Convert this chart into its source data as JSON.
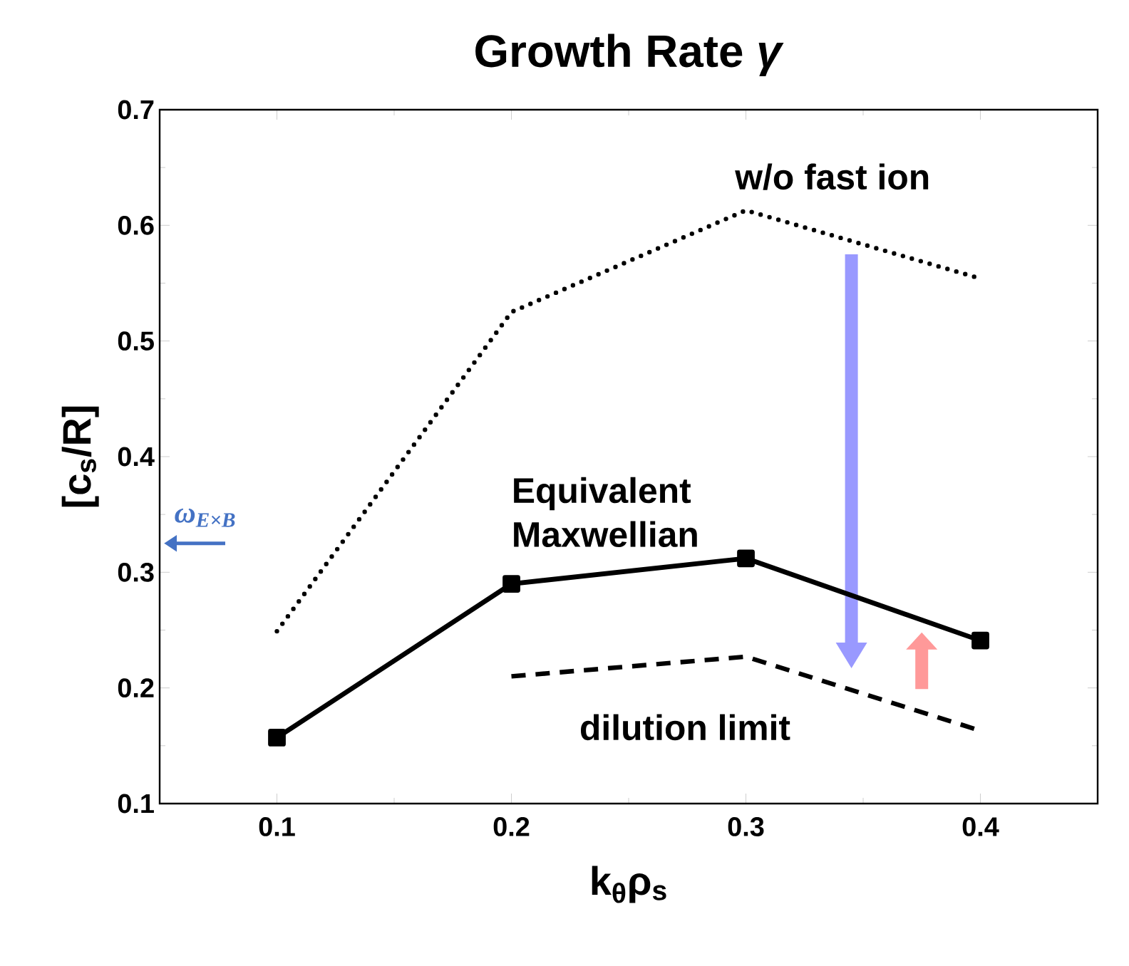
{
  "chart_data": {
    "type": "line",
    "title": "Growth Rate *γ*",
    "xlabel": "k$_{θ}$ρ$_{s}$",
    "ylabel": "[c$_{s}$/R]",
    "x": [
      0.1,
      0.2,
      0.3,
      0.4
    ],
    "series": [
      {
        "name": "w/o fast ion",
        "color": "#000000",
        "values": [
          0.249,
          0.525,
          0.613,
          0.554
        ],
        "line_style": "dotted",
        "marker": "none"
      },
      {
        "name": "Equivalent Maxwellian",
        "color": "#000000",
        "values": [
          0.157,
          0.29,
          0.312,
          0.241
        ],
        "line_style": "solid",
        "marker": "square"
      },
      {
        "name": "dilution limit",
        "color": "#000000",
        "values": [
          null,
          0.21,
          0.227,
          0.163
        ],
        "line_style": "dashed",
        "marker": "none"
      }
    ],
    "annotations": [
      "ω$_{E×B}$"
    ],
    "xlim": [
      0.05,
      0.45
    ],
    "ylim": [
      0.1,
      0.7
    ],
    "xticks": [
      0.1,
      0.2,
      0.3,
      0.4
    ],
    "yticks": [
      0.1,
      0.2,
      0.3,
      0.4,
      0.5,
      0.6,
      0.7
    ]
  }
}
